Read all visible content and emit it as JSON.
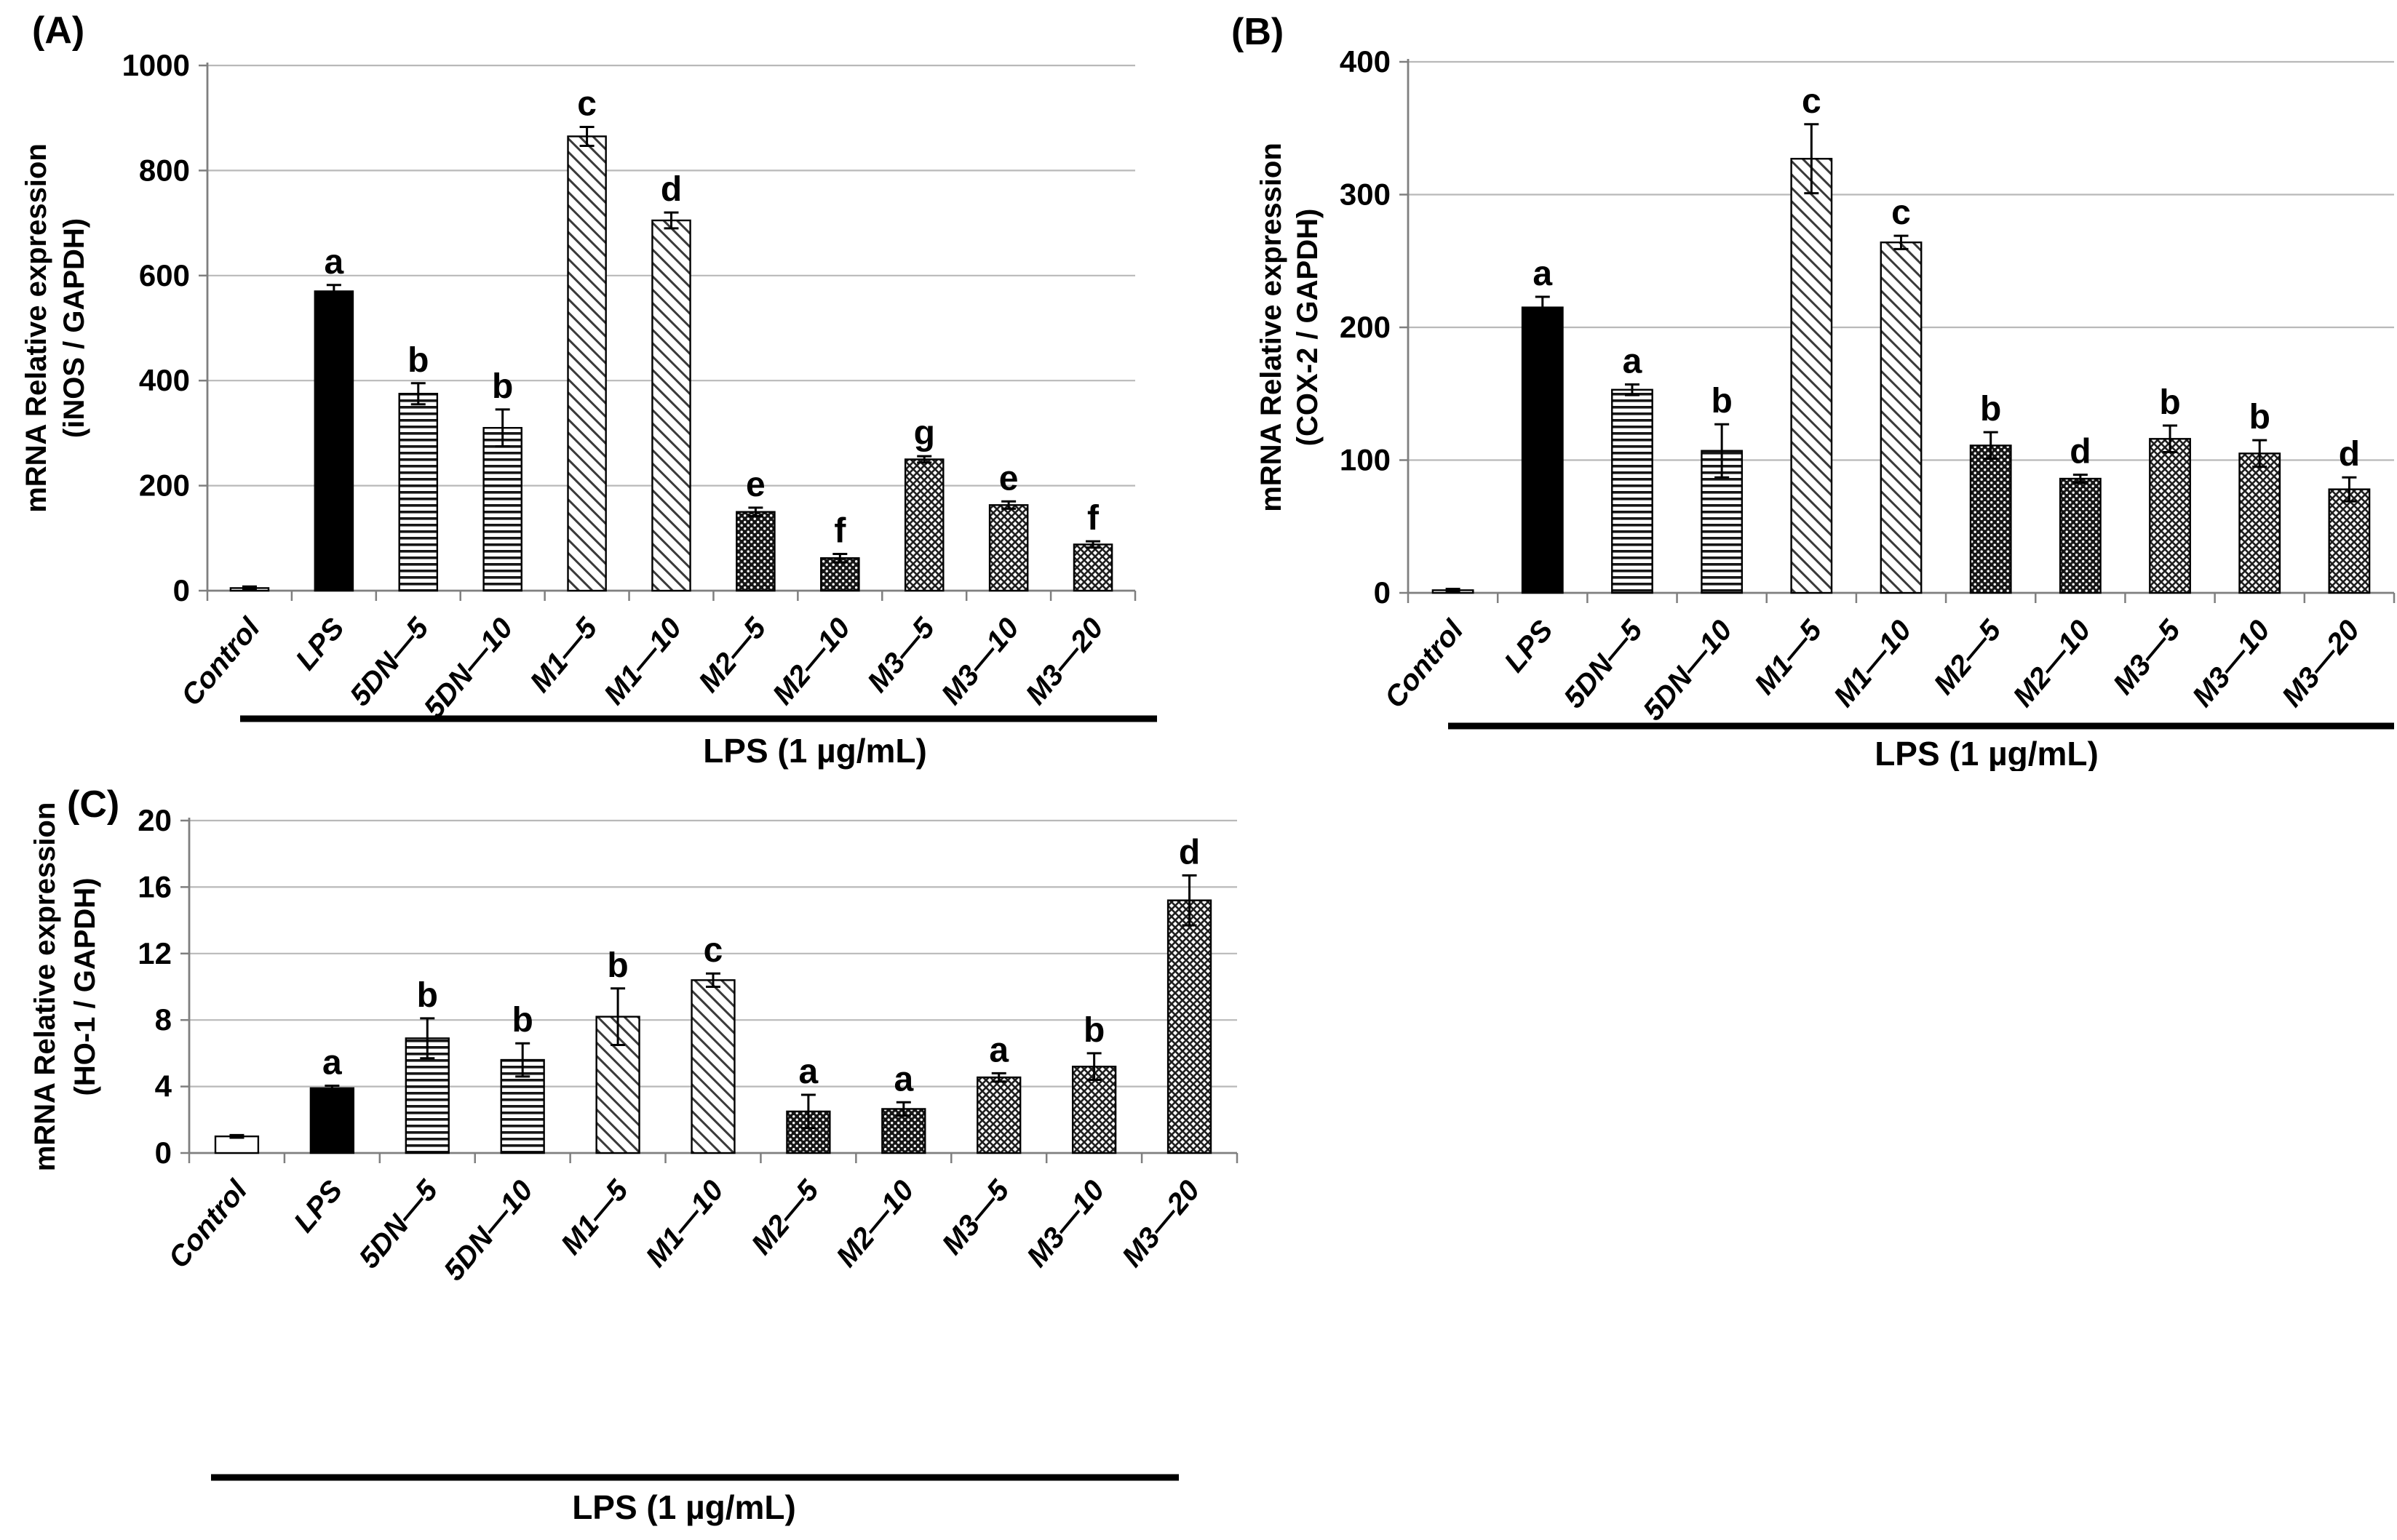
{
  "figure": {
    "panel_labels": [
      "(A)",
      "(B)",
      "(C)"
    ],
    "group_label": "LPS (1 µg/mL)",
    "categories": [
      "Control",
      "LPS",
      "5DN—5",
      "5DN—10",
      "M1—5",
      "M1—10",
      "M2—5",
      "M2—10",
      "M3—5",
      "M3—10",
      "M3—20"
    ]
  },
  "chart_data": [
    {
      "type": "bar",
      "panel_label": "(A)",
      "ylabel_line1": "mRNA Relative expression",
      "ylabel_line2": "(iNOS / GAPDH)",
      "xlabel_group": "LPS (1 µg/mL)",
      "ylim": [
        0,
        1000
      ],
      "ytick_step": 200,
      "grid": true,
      "legend": "none",
      "categories": [
        "Control",
        "LPS",
        "5DN—5",
        "5DN—10",
        "M1—5",
        "M1—10",
        "M2—5",
        "M2—10",
        "M3—5",
        "M3—10",
        "M3—20"
      ],
      "values": [
        5,
        570,
        375,
        310,
        865,
        705,
        150,
        62,
        250,
        163,
        88
      ],
      "errors": [
        3,
        12,
        20,
        35,
        18,
        15,
        8,
        8,
        6,
        7,
        6
      ],
      "letters": [
        "",
        "a",
        "b",
        "b",
        "c",
        "d",
        "e",
        "f",
        "g",
        "e",
        "f"
      ],
      "patterns": [
        "plain",
        "solid",
        "hlines",
        "hlines",
        "diag",
        "diag",
        "dots",
        "dots",
        "cross",
        "cross",
        "cross"
      ]
    },
    {
      "type": "bar",
      "panel_label": "(B)",
      "ylabel_line1": "mRNA Relative expression",
      "ylabel_line2": "(COX-2 / GAPDH)",
      "xlabel_group": "LPS (1 µg/mL)",
      "ylim": [
        0,
        400
      ],
      "ytick_step": 100,
      "grid": true,
      "legend": "none",
      "categories": [
        "Control",
        "LPS",
        "5DN—5",
        "5DN—10",
        "M1—5",
        "M1—10",
        "M2—5",
        "M2—10",
        "M3—5",
        "M3—10",
        "M3—20"
      ],
      "values": [
        2,
        215,
        153,
        107,
        327,
        264,
        111,
        86,
        116,
        105,
        78
      ],
      "errors": [
        1,
        8,
        4,
        20,
        26,
        5,
        10,
        3,
        10,
        10,
        9
      ],
      "letters": [
        "",
        "a",
        "a",
        "b",
        "c",
        "c",
        "b",
        "d",
        "b",
        "b",
        "d"
      ],
      "patterns": [
        "plain",
        "solid",
        "hlines",
        "hlines",
        "diag",
        "diag",
        "dots",
        "dots",
        "cross",
        "cross",
        "cross"
      ]
    },
    {
      "type": "bar",
      "panel_label": "(C)",
      "ylabel_line1": "mRNA Relative expression",
      "ylabel_line2": "(HO-1 / GAPDH)",
      "xlabel_group": "LPS (1 µg/mL)",
      "ylim": [
        0,
        20
      ],
      "ytick_step": 4,
      "grid": true,
      "legend": "none",
      "categories": [
        "Control",
        "LPS",
        "5DN—5",
        "5DN—10",
        "M1—5",
        "M1—10",
        "M2—5",
        "M2—10",
        "M3—5",
        "M3—10",
        "M3—20"
      ],
      "values": [
        1.0,
        3.9,
        6.9,
        5.6,
        8.2,
        10.4,
        2.5,
        2.65,
        4.55,
        5.2,
        15.2
      ],
      "errors": [
        0.08,
        0.15,
        1.2,
        1.0,
        1.7,
        0.4,
        1.0,
        0.4,
        0.25,
        0.8,
        1.5
      ],
      "letters": [
        "",
        "a",
        "b",
        "b",
        "b",
        "c",
        "a",
        "a",
        "a",
        "b",
        "d"
      ],
      "patterns": [
        "plain",
        "solid",
        "hlines",
        "hlines",
        "diag",
        "diag",
        "dots",
        "dots",
        "cross",
        "cross",
        "cross"
      ]
    }
  ]
}
